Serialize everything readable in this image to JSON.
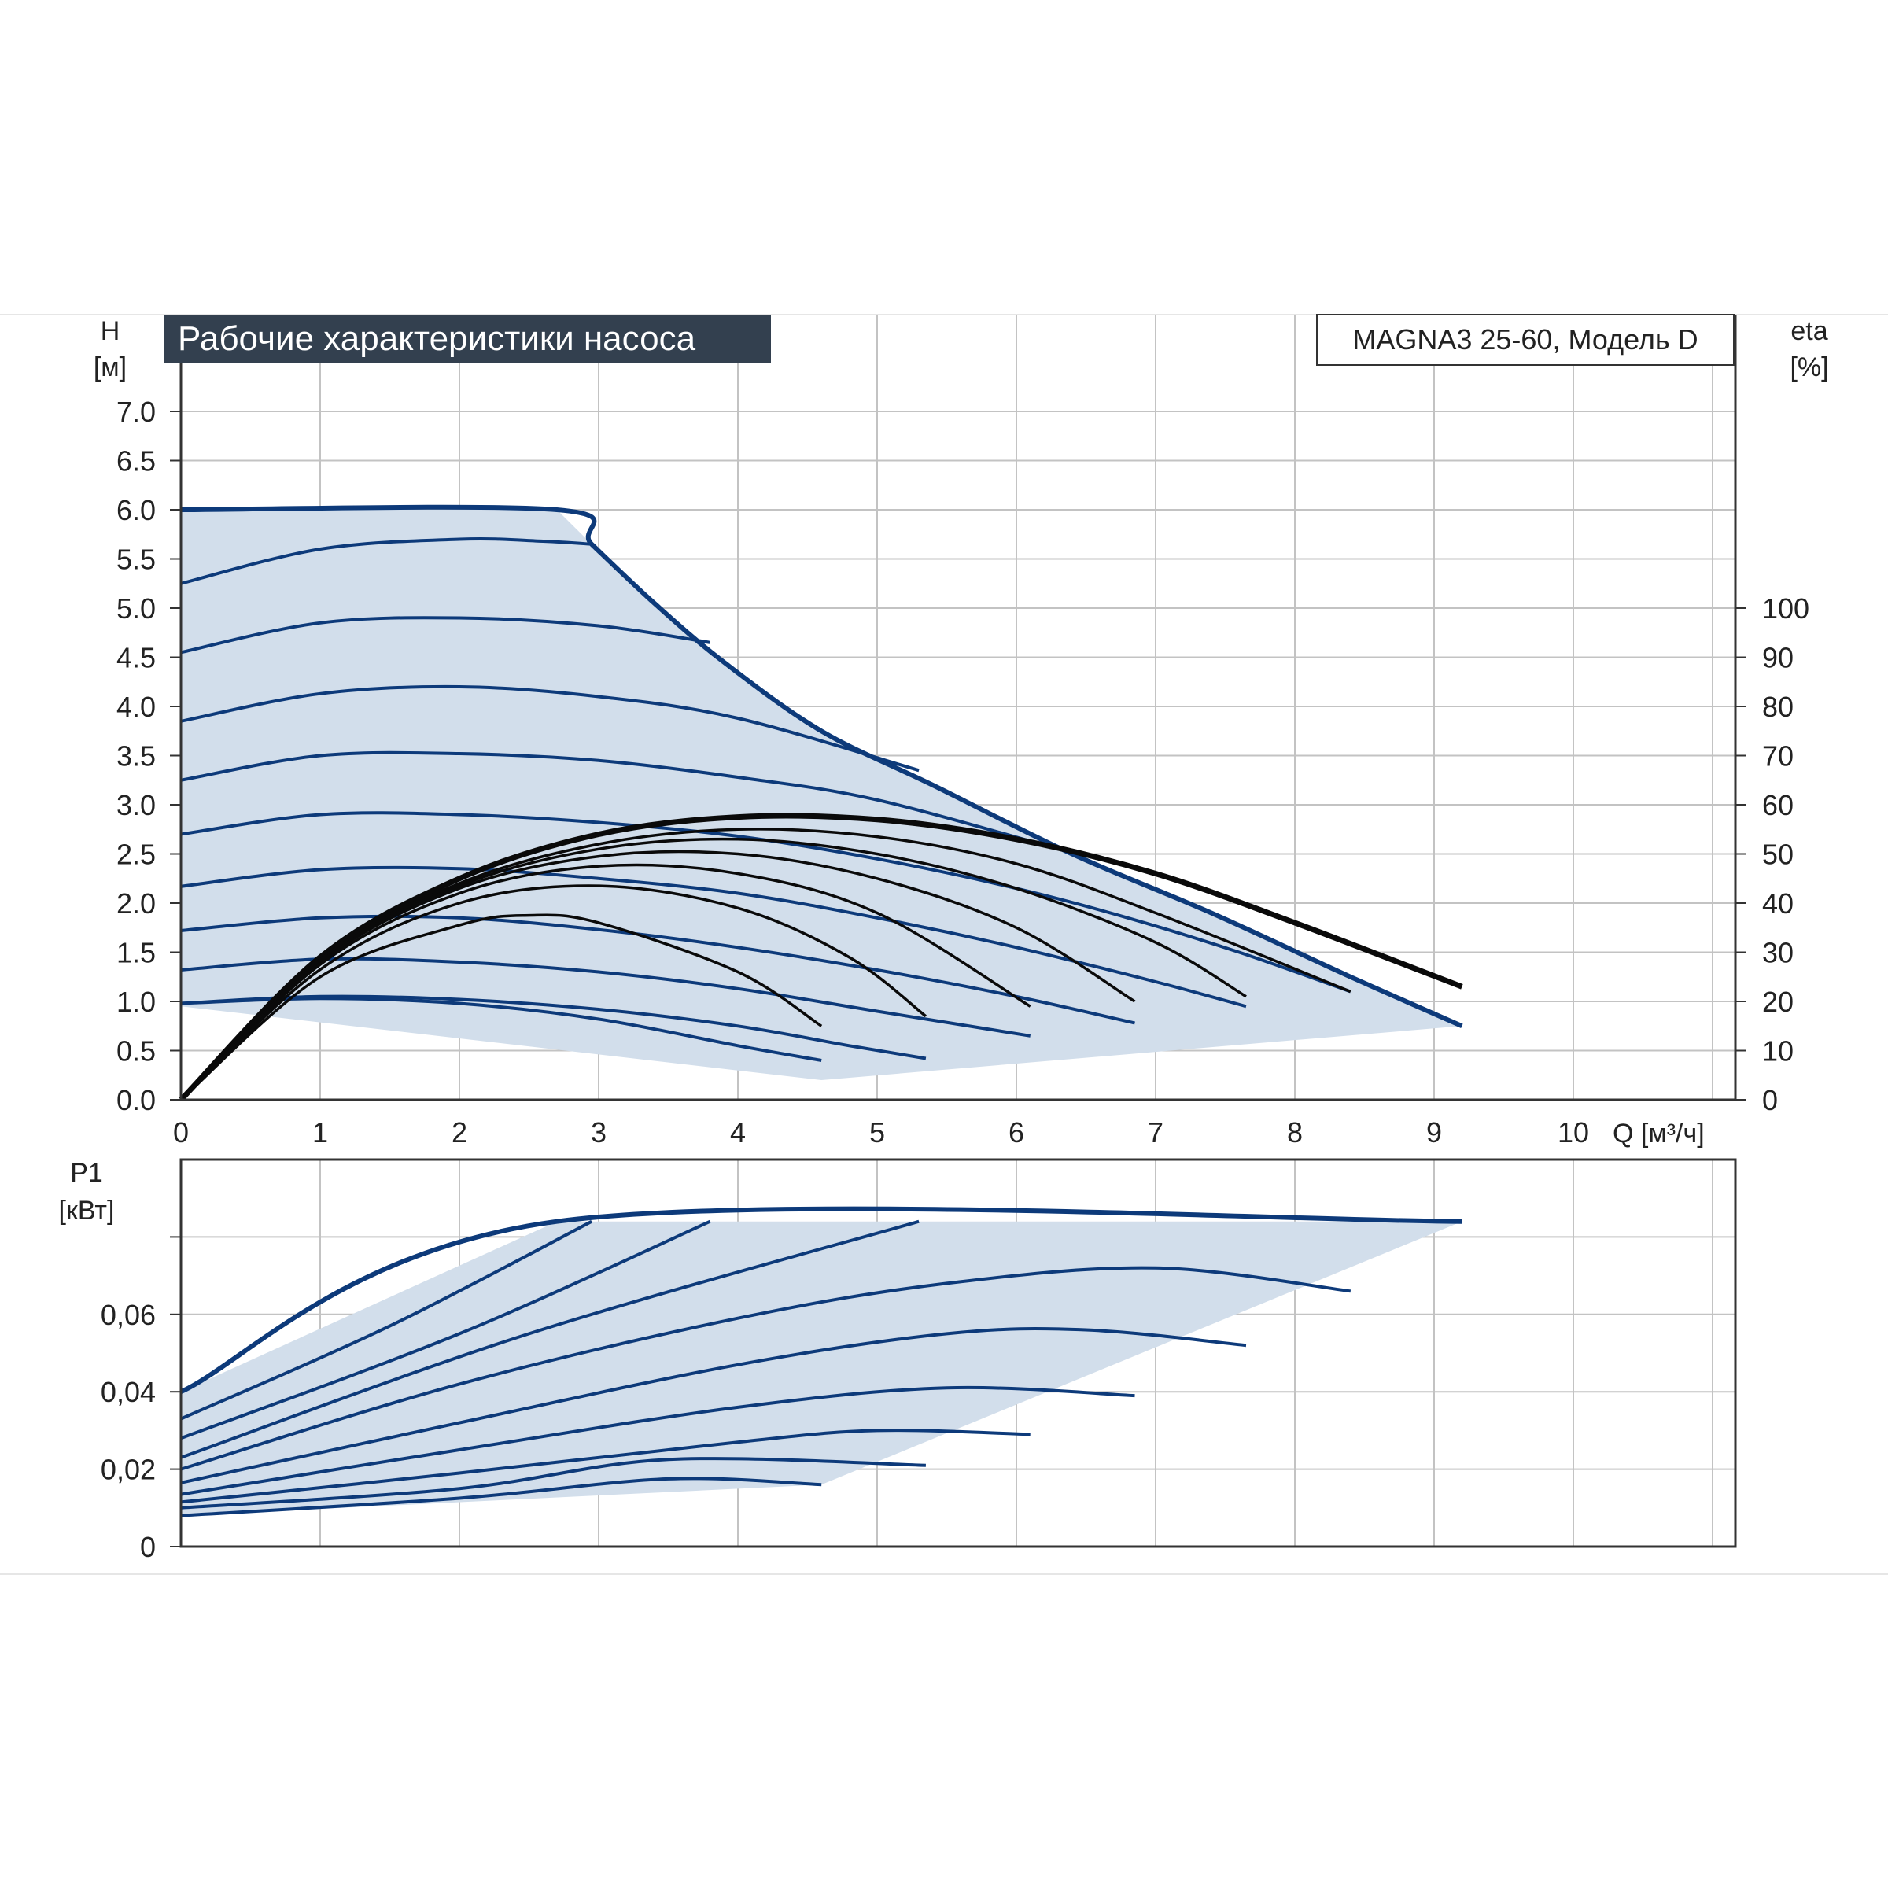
{
  "title": "Рабочие характеристики насоса",
  "model_label": "MAGNA3 25-60, Модель D",
  "colors": {
    "curve": "#0d3a7a",
    "region_fill": "#d2deeb",
    "efficiency": "#0a0a0a",
    "grid": "#c3c3c3",
    "title_bg": "#33404f",
    "title_text": "#ffffff",
    "axis_text": "#222222"
  },
  "chart_data": [
    {
      "type": "line",
      "name": "head",
      "ylabel_symbol": "H",
      "ylabel_unit": "[м]",
      "y2label_symbol": "eta",
      "y2label_unit": "[%]",
      "xlabel": "Q [м³/ч]",
      "xlim": [
        0,
        11
      ],
      "ylim": [
        0,
        7.4
      ],
      "y2lim": [
        0,
        100
      ],
      "grid": true,
      "x_ticks": [
        "0",
        "1",
        "2",
        "3",
        "4",
        "5",
        "6",
        "7",
        "8",
        "9",
        "10"
      ],
      "y_ticks": [
        "0.0",
        "0.5",
        "1.0",
        "1.5",
        "2.0",
        "2.5",
        "3.0",
        "3.5",
        "4.0",
        "4.5",
        "5.0",
        "5.5",
        "6.0",
        "6.5",
        "7.0"
      ],
      "y2_ticks": [
        "0",
        "10",
        "20",
        "30",
        "40",
        "50",
        "60",
        "70",
        "80",
        "90",
        "100"
      ],
      "envelope": [
        [
          0,
          6.0
        ],
        [
          2.7,
          6.0
        ],
        [
          2.95,
          5.65
        ],
        [
          3.4,
          5.05
        ],
        [
          3.9,
          4.45
        ],
        [
          4.6,
          3.75
        ],
        [
          5.4,
          3.2
        ],
        [
          6.4,
          2.5
        ],
        [
          7.4,
          1.9
        ],
        [
          8.4,
          1.25
        ],
        [
          9.2,
          0.75
        ],
        [
          4.6,
          0.2
        ],
        [
          0,
          0.95
        ]
      ],
      "head_curves": [
        [
          [
            0,
            6.0
          ],
          [
            2.7,
            6.0
          ],
          [
            2.95,
            5.65
          ],
          [
            3.4,
            5.05
          ],
          [
            3.9,
            4.45
          ],
          [
            4.6,
            3.75
          ],
          [
            5.4,
            3.2
          ],
          [
            6.4,
            2.5
          ],
          [
            7.4,
            1.9
          ],
          [
            8.4,
            1.25
          ],
          [
            9.2,
            0.75
          ]
        ],
        [
          [
            0,
            5.25
          ],
          [
            1,
            5.6
          ],
          [
            2,
            5.7
          ],
          [
            2.6,
            5.68
          ],
          [
            2.95,
            5.65
          ]
        ],
        [
          [
            0,
            4.55
          ],
          [
            1,
            4.85
          ],
          [
            2,
            4.9
          ],
          [
            3,
            4.82
          ],
          [
            3.8,
            4.65
          ]
        ],
        [
          [
            0,
            3.85
          ],
          [
            1,
            4.13
          ],
          [
            2,
            4.2
          ],
          [
            3,
            4.1
          ],
          [
            4,
            3.88
          ],
          [
            5.3,
            3.35
          ]
        ],
        [
          [
            0,
            3.25
          ],
          [
            1,
            3.5
          ],
          [
            2,
            3.52
          ],
          [
            3,
            3.45
          ],
          [
            4,
            3.28
          ],
          [
            5,
            3.05
          ],
          [
            6.3,
            2.55
          ]
        ],
        [
          [
            0,
            2.7
          ],
          [
            1,
            2.9
          ],
          [
            2,
            2.9
          ],
          [
            3,
            2.82
          ],
          [
            4,
            2.68
          ],
          [
            5,
            2.45
          ],
          [
            6,
            2.15
          ],
          [
            6.8,
            1.85
          ],
          [
            7.6,
            1.5
          ],
          [
            8.4,
            1.1
          ]
        ],
        [
          [
            0,
            2.17
          ],
          [
            1,
            2.34
          ],
          [
            2,
            2.35
          ],
          [
            3,
            2.25
          ],
          [
            4,
            2.1
          ],
          [
            5,
            1.85
          ],
          [
            6,
            1.55
          ],
          [
            7,
            1.2
          ],
          [
            7.65,
            0.95
          ]
        ],
        [
          [
            0,
            1.72
          ],
          [
            1,
            1.85
          ],
          [
            2,
            1.85
          ],
          [
            3,
            1.73
          ],
          [
            4,
            1.55
          ],
          [
            5,
            1.32
          ],
          [
            6,
            1.05
          ],
          [
            6.85,
            0.78
          ]
        ],
        [
          [
            0,
            1.32
          ],
          [
            1,
            1.43
          ],
          [
            2,
            1.4
          ],
          [
            3,
            1.3
          ],
          [
            4,
            1.13
          ],
          [
            5,
            0.9
          ],
          [
            6.1,
            0.65
          ]
        ],
        [
          [
            0,
            0.98
          ],
          [
            1,
            1.05
          ],
          [
            2,
            1.02
          ],
          [
            3,
            0.92
          ],
          [
            4,
            0.75
          ],
          [
            4.8,
            0.55
          ],
          [
            5.35,
            0.42
          ]
        ],
        [
          [
            0,
            0.98
          ],
          [
            1,
            1.03
          ],
          [
            2,
            0.98
          ],
          [
            3,
            0.82
          ],
          [
            4,
            0.55
          ],
          [
            4.6,
            0.4
          ]
        ]
      ],
      "efficiency_curves": [
        [
          [
            0,
            0
          ],
          [
            1,
            29
          ],
          [
            2,
            45
          ],
          [
            3,
            54
          ],
          [
            4,
            57.5
          ],
          [
            5,
            57
          ],
          [
            6,
            53
          ],
          [
            7,
            46
          ],
          [
            8,
            36
          ],
          [
            9.2,
            23
          ]
        ],
        [
          [
            0,
            0
          ],
          [
            1,
            29
          ],
          [
            2,
            44
          ],
          [
            3,
            52
          ],
          [
            4,
            55
          ],
          [
            5,
            53.5
          ],
          [
            6,
            48
          ],
          [
            7,
            38
          ],
          [
            8.4,
            22
          ]
        ],
        [
          [
            0,
            0
          ],
          [
            1,
            28.5
          ],
          [
            2,
            43.5
          ],
          [
            3,
            51
          ],
          [
            4,
            53
          ],
          [
            5,
            50
          ],
          [
            6,
            43
          ],
          [
            7,
            32
          ],
          [
            7.65,
            21
          ]
        ],
        [
          [
            0,
            0
          ],
          [
            1,
            28
          ],
          [
            2,
            43
          ],
          [
            3,
            49.5
          ],
          [
            4,
            50
          ],
          [
            5,
            45
          ],
          [
            6,
            35
          ],
          [
            6.85,
            20
          ]
        ],
        [
          [
            0,
            0
          ],
          [
            1,
            27.5
          ],
          [
            2,
            42
          ],
          [
            3,
            47.5
          ],
          [
            4,
            46
          ],
          [
            5,
            38
          ],
          [
            6.1,
            19
          ]
        ],
        [
          [
            0,
            0
          ],
          [
            1,
            26.5
          ],
          [
            2,
            40
          ],
          [
            3,
            43.5
          ],
          [
            4,
            39
          ],
          [
            4.8,
            29
          ],
          [
            5.35,
            17
          ]
        ],
        [
          [
            0,
            0
          ],
          [
            1,
            25
          ],
          [
            2,
            35.5
          ],
          [
            2.5,
            37.5
          ],
          [
            3,
            36
          ],
          [
            4,
            26
          ],
          [
            4.6,
            15
          ]
        ]
      ]
    },
    {
      "type": "line",
      "name": "power",
      "ylabel_symbol": "P1",
      "ylabel_unit": "[кВт]",
      "xlim": [
        0,
        11
      ],
      "ylim": [
        0,
        0.1
      ],
      "grid": true,
      "y_ticks": [
        "0",
        "0,02",
        "0,04",
        "0,06"
      ],
      "envelope": [
        [
          0,
          0.04
        ],
        [
          2.7,
          0.084
        ],
        [
          9.2,
          0.084
        ],
        [
          4.6,
          0.016
        ],
        [
          0,
          0.008
        ]
      ],
      "power_curves": [
        [
          [
            0,
            0.04
          ],
          [
            2.7,
            0.084
          ],
          [
            9.2,
            0.084
          ]
        ],
        [
          [
            0,
            0.033
          ],
          [
            1.5,
            0.057
          ],
          [
            2.95,
            0.084
          ]
        ],
        [
          [
            0,
            0.028
          ],
          [
            2,
            0.055
          ],
          [
            3.8,
            0.084
          ]
        ],
        [
          [
            0,
            0.023
          ],
          [
            2.5,
            0.055
          ],
          [
            5.3,
            0.084
          ]
        ],
        [
          [
            0,
            0.02
          ],
          [
            2,
            0.042
          ],
          [
            4,
            0.059
          ],
          [
            5.5,
            0.068
          ],
          [
            7,
            0.072
          ],
          [
            8.4,
            0.066
          ]
        ],
        [
          [
            0,
            0.0165
          ],
          [
            2,
            0.032
          ],
          [
            4,
            0.047
          ],
          [
            5.5,
            0.055
          ],
          [
            6.5,
            0.056
          ],
          [
            7.65,
            0.052
          ]
        ],
        [
          [
            0,
            0.0135
          ],
          [
            2,
            0.025
          ],
          [
            4,
            0.036
          ],
          [
            5.5,
            0.041
          ],
          [
            6.85,
            0.039
          ]
        ],
        [
          [
            0,
            0.0115
          ],
          [
            2,
            0.019
          ],
          [
            4,
            0.027
          ],
          [
            5,
            0.03
          ],
          [
            6.1,
            0.029
          ]
        ],
        [
          [
            0,
            0.01
          ],
          [
            2,
            0.015
          ],
          [
            3.5,
            0.0225
          ],
          [
            5.35,
            0.021
          ]
        ],
        [
          [
            0,
            0.008
          ],
          [
            2,
            0.0125
          ],
          [
            3.5,
            0.0175
          ],
          [
            4.6,
            0.016
          ]
        ]
      ]
    }
  ]
}
